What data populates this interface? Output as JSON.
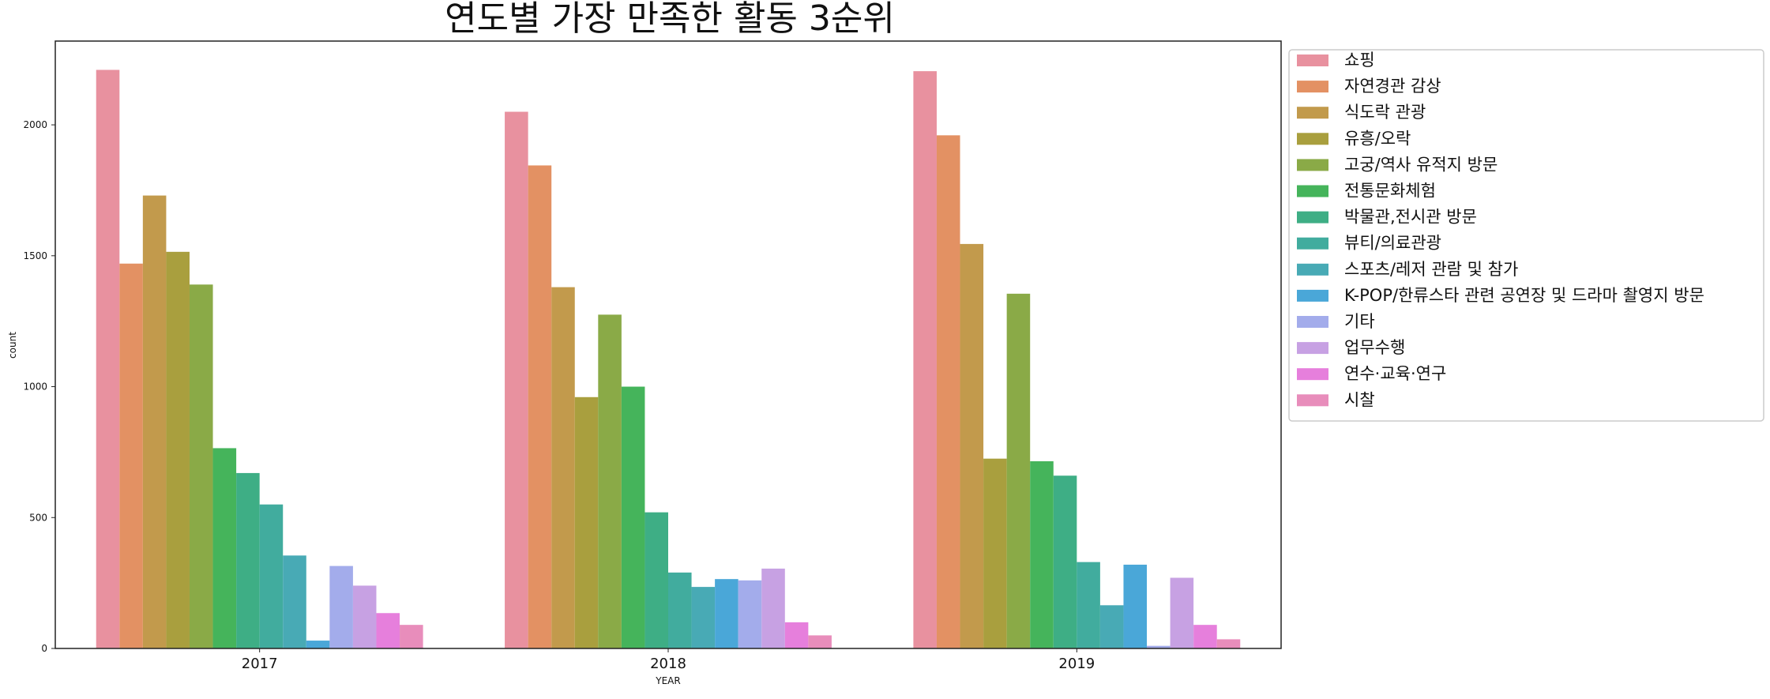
{
  "chart_data": {
    "type": "bar",
    "title": "연도별 가장 만족한 활동 3순위",
    "xlabel": "YEAR",
    "ylabel": "count",
    "ylim": [
      0,
      2320
    ],
    "yticks": [
      0,
      500,
      1000,
      1500,
      2000
    ],
    "categories": [
      "2017",
      "2018",
      "2019"
    ],
    "grid": false,
    "legend_position": "outside-right",
    "series": [
      {
        "name": "쇼핑",
        "color": "#e8919f",
        "values": [
          2210,
          2050,
          2205
        ]
      },
      {
        "name": "자연경관 감상",
        "color": "#e39163",
        "values": [
          1470,
          1845,
          1960
        ]
      },
      {
        "name": "식도락 관광",
        "color": "#c29a4c",
        "values": [
          1730,
          1380,
          1545
        ]
      },
      {
        "name": "유흥/오락",
        "color": "#a99f3e",
        "values": [
          1515,
          960,
          725
        ]
      },
      {
        "name": "고궁/역사 유적지 방문",
        "color": "#8aaa47",
        "values": [
          1390,
          1275,
          1355
        ]
      },
      {
        "name": "전통문화체험",
        "color": "#45b45b",
        "values": [
          765,
          1000,
          715
        ]
      },
      {
        "name": "박물관,전시관 방문",
        "color": "#3eae85",
        "values": [
          670,
          520,
          660
        ]
      },
      {
        "name": "뷰티/의료관광",
        "color": "#41ac9e",
        "values": [
          550,
          290,
          330
        ]
      },
      {
        "name": "스포츠/레저 관람 및 참가",
        "color": "#48aab5",
        "values": [
          355,
          235,
          165
        ]
      },
      {
        "name": "K-POP/한류스타 관련 공연장 및 드라마 촬영지 방문",
        "color": "#4aa7d8",
        "values": [
          30,
          265,
          320
        ]
      },
      {
        "name": "기타",
        "color": "#a3aceb",
        "values": [
          315,
          260,
          10
        ]
      },
      {
        "name": "업무수행",
        "color": "#c7a1e3",
        "values": [
          240,
          305,
          270
        ]
      },
      {
        "name": "연수·교육·연구",
        "color": "#e67fdc",
        "values": [
          135,
          100,
          90
        ]
      },
      {
        "name": "시찰",
        "color": "#e88dbb",
        "values": [
          90,
          50,
          35
        ]
      }
    ]
  }
}
